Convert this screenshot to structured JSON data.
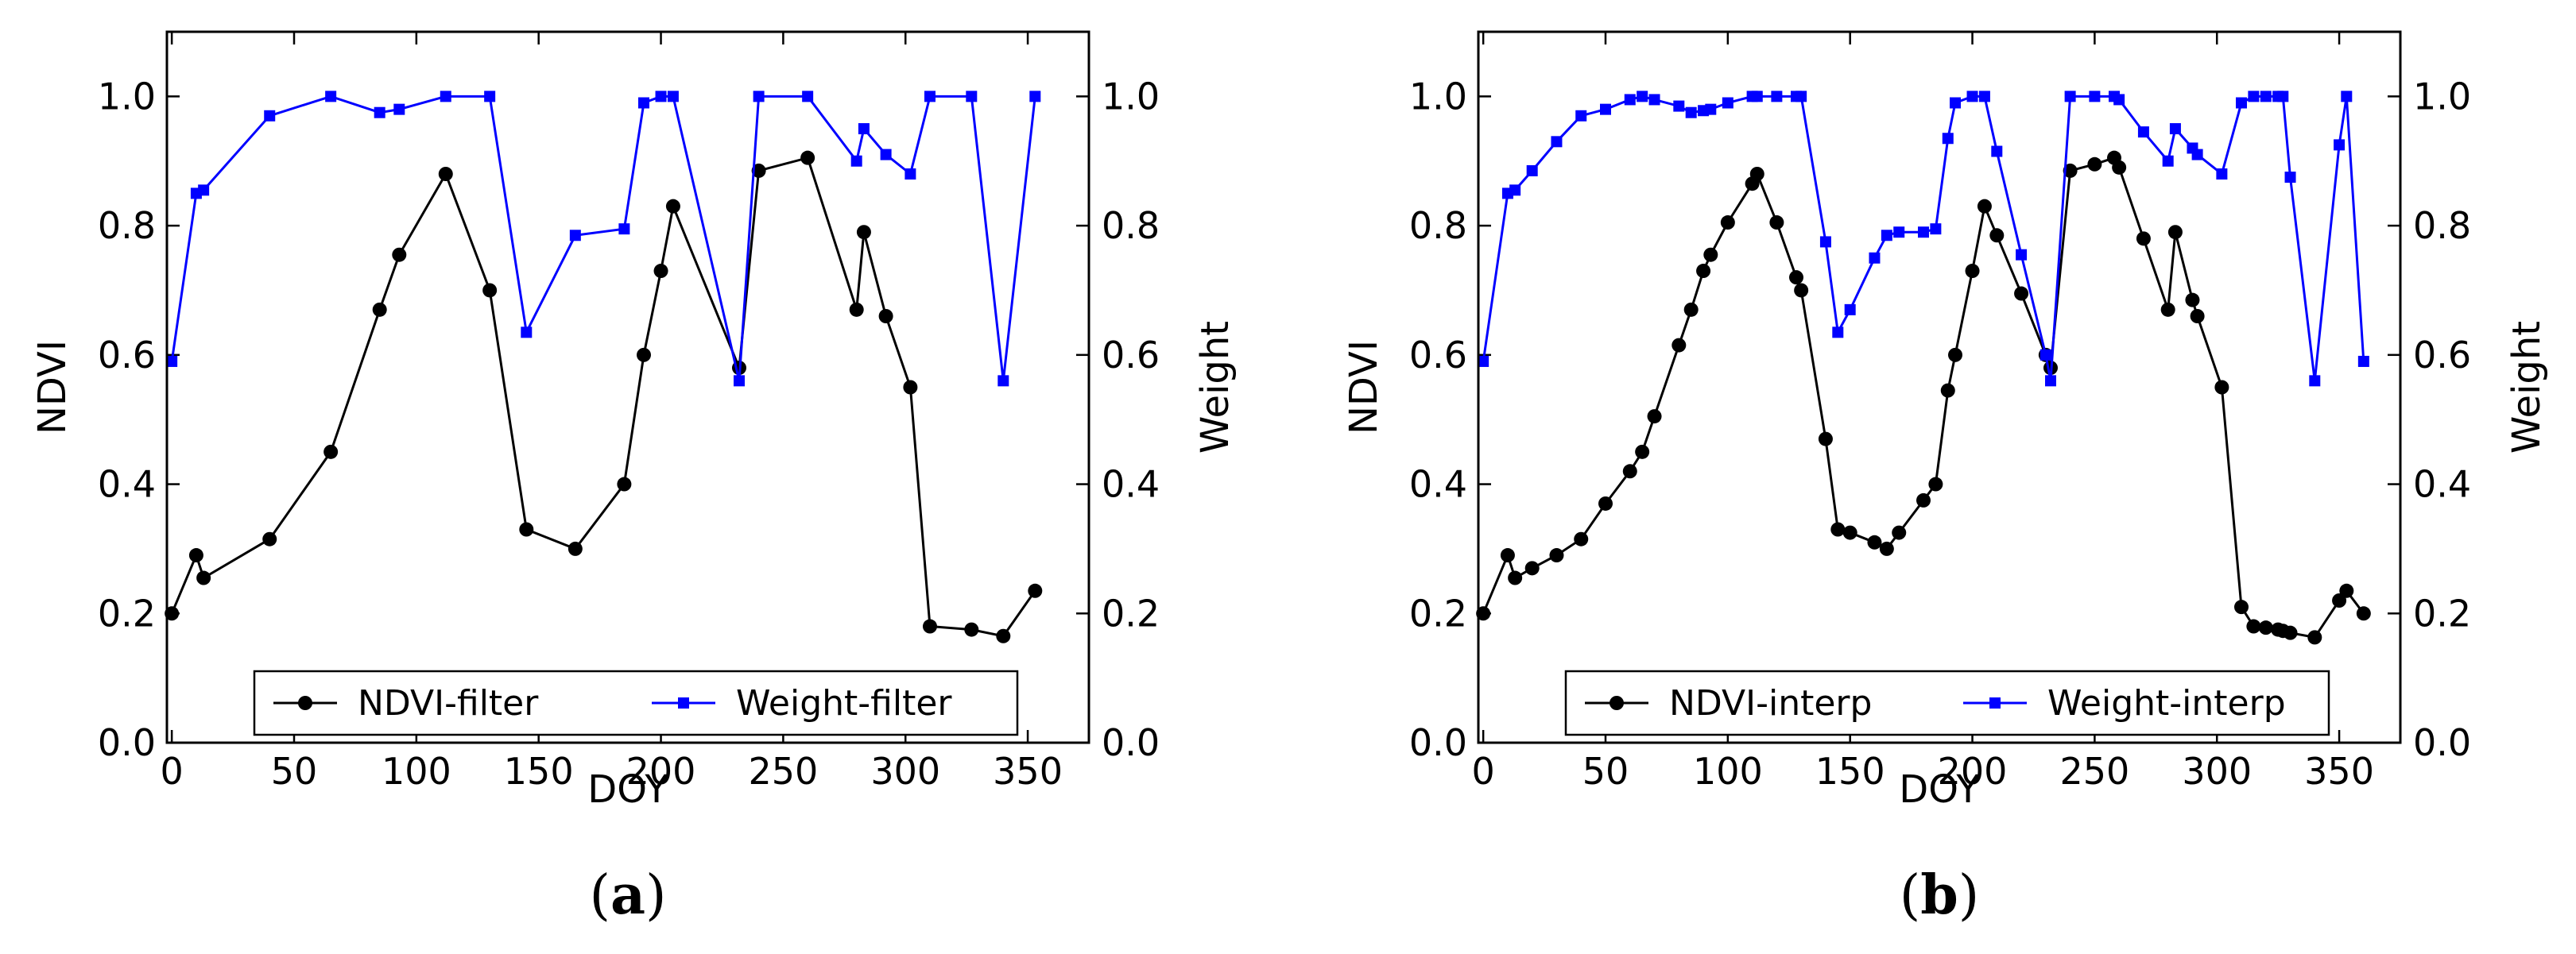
{
  "chart_data": [
    {
      "type": "line",
      "panel": "a",
      "caption": {
        "open": "(",
        "letter": "a",
        "close": ")"
      },
      "xlabel": "DOY",
      "ylabel": "NDVI",
      "y2label": "Weight",
      "xlim": [
        -2,
        375
      ],
      "ylim": [
        0.0,
        1.1
      ],
      "y2lim": [
        0.0,
        1.1
      ],
      "xticks": [
        0,
        50,
        100,
        150,
        200,
        250,
        300,
        350
      ],
      "yticks": [
        0.0,
        0.2,
        0.4,
        0.6,
        0.8,
        1.0
      ],
      "ytick_labels": [
        "0.0",
        "0.2",
        "0.4",
        "0.6",
        "0.8",
        "1.0"
      ],
      "legend_position": "lower center",
      "series": [
        {
          "name": "NDVI-filter",
          "axis": "left",
          "color": "#000000",
          "marker": "circle",
          "x": [
            0,
            10,
            13,
            40,
            65,
            85,
            93,
            112,
            130,
            145,
            165,
            185,
            193,
            200,
            205,
            232,
            240,
            260,
            280,
            283,
            292,
            302,
            310,
            327,
            340,
            353
          ],
          "y": [
            0.2,
            0.29,
            0.255,
            0.315,
            0.45,
            0.67,
            0.755,
            0.88,
            0.7,
            0.33,
            0.3,
            0.4,
            0.6,
            0.73,
            0.83,
            0.58,
            0.885,
            0.905,
            0.67,
            0.79,
            0.66,
            0.55,
            0.18,
            0.175,
            0.165,
            0.235
          ]
        },
        {
          "name": "Weight-filter",
          "axis": "right",
          "color": "#0000ff",
          "marker": "square",
          "x": [
            0,
            10,
            13,
            40,
            65,
            85,
            93,
            112,
            130,
            145,
            165,
            185,
            193,
            200,
            205,
            232,
            240,
            260,
            280,
            283,
            292,
            302,
            310,
            327,
            340,
            353
          ],
          "y": [
            0.59,
            0.85,
            0.855,
            0.97,
            1.0,
            0.975,
            0.98,
            1.0,
            1.0,
            0.635,
            0.785,
            0.795,
            0.99,
            1.0,
            1.0,
            0.56,
            1.0,
            1.0,
            0.9,
            0.95,
            0.91,
            0.88,
            1.0,
            1.0,
            0.56,
            1.0
          ]
        }
      ]
    },
    {
      "type": "line",
      "panel": "b",
      "caption": {
        "open": "(",
        "letter": "b",
        "close": ")"
      },
      "xlabel": "DOY",
      "ylabel": "NDVI",
      "y2label": "Weight",
      "xlim": [
        -2,
        375
      ],
      "ylim": [
        0.0,
        1.1
      ],
      "y2lim": [
        0.0,
        1.1
      ],
      "xticks": [
        0,
        50,
        100,
        150,
        200,
        250,
        300,
        350
      ],
      "yticks": [
        0.0,
        0.2,
        0.4,
        0.6,
        0.8,
        1.0
      ],
      "ytick_labels": [
        "0.0",
        "0.2",
        "0.4",
        "0.6",
        "0.8",
        "1.0"
      ],
      "legend_position": "lower center",
      "series": [
        {
          "name": "NDVI-interp",
          "axis": "left",
          "color": "#000000",
          "marker": "circle",
          "x": [
            0,
            10,
            13,
            20,
            30,
            40,
            50,
            60,
            65,
            70,
            80,
            85,
            90,
            93,
            100,
            110,
            112,
            120,
            128,
            130,
            140,
            145,
            150,
            160,
            165,
            170,
            180,
            185,
            190,
            193,
            200,
            205,
            210,
            220,
            230,
            232,
            240,
            250,
            258,
            260,
            270,
            280,
            283,
            290,
            292,
            302,
            310,
            315,
            320,
            325,
            327,
            330,
            340,
            350,
            353,
            360
          ],
          "y": [
            0.2,
            0.29,
            0.255,
            0.27,
            0.29,
            0.315,
            0.37,
            0.42,
            0.45,
            0.505,
            0.615,
            0.67,
            0.73,
            0.755,
            0.805,
            0.865,
            0.88,
            0.805,
            0.72,
            0.7,
            0.47,
            0.33,
            0.325,
            0.31,
            0.3,
            0.325,
            0.375,
            0.4,
            0.545,
            0.6,
            0.73,
            0.83,
            0.785,
            0.695,
            0.6,
            0.58,
            0.885,
            0.895,
            0.905,
            0.89,
            0.78,
            0.67,
            0.79,
            0.685,
            0.66,
            0.55,
            0.21,
            0.18,
            0.178,
            0.175,
            0.173,
            0.17,
            0.163,
            0.22,
            0.235,
            0.2
          ]
        },
        {
          "name": "Weight-interp",
          "axis": "right",
          "color": "#0000ff",
          "marker": "square",
          "x": [
            0,
            10,
            13,
            20,
            30,
            40,
            50,
            60,
            65,
            70,
            80,
            85,
            90,
            93,
            100,
            110,
            112,
            120,
            128,
            130,
            140,
            145,
            150,
            160,
            165,
            170,
            180,
            185,
            190,
            193,
            200,
            205,
            210,
            220,
            230,
            232,
            240,
            250,
            258,
            260,
            270,
            280,
            283,
            290,
            292,
            302,
            310,
            315,
            320,
            325,
            327,
            330,
            340,
            350,
            353,
            360
          ],
          "y": [
            0.59,
            0.85,
            0.855,
            0.885,
            0.93,
            0.97,
            0.98,
            0.995,
            1.0,
            0.995,
            0.985,
            0.975,
            0.978,
            0.98,
            0.99,
            1.0,
            1.0,
            1.0,
            1.0,
            1.0,
            0.775,
            0.635,
            0.67,
            0.75,
            0.785,
            0.79,
            0.79,
            0.795,
            0.935,
            0.99,
            1.0,
            1.0,
            0.915,
            0.755,
            0.6,
            0.56,
            1.0,
            1.0,
            1.0,
            0.995,
            0.945,
            0.9,
            0.95,
            0.92,
            0.91,
            0.88,
            0.99,
            1.0,
            1.0,
            1.0,
            1.0,
            0.875,
            0.56,
            0.925,
            1.0,
            0.59
          ]
        }
      ]
    }
  ]
}
